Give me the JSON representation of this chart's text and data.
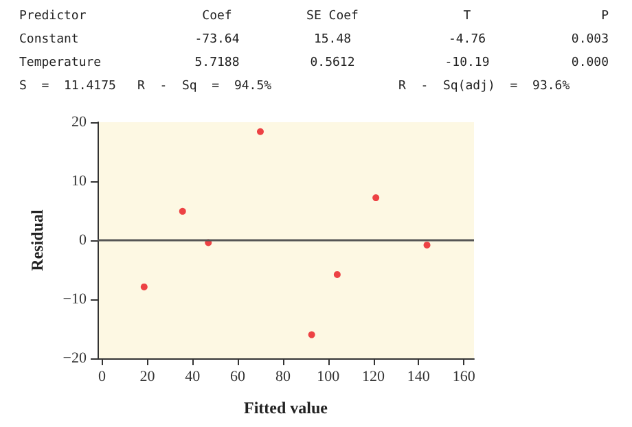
{
  "chart_data": {
    "type": "scatter",
    "xlabel": "Fitted value",
    "ylabel": "Residual",
    "x": [
      18.6,
      35.6,
      47.0,
      70.0,
      92.7,
      104.0,
      121.1,
      143.7
    ],
    "series": [
      {
        "color": "#e8141c",
        "values": [
          -7.9,
          4.9,
          -0.4,
          18.4,
          -16.0,
          -5.8,
          7.2,
          -0.8
        ]
      }
    ],
    "xlim": [
      -2,
      164.5
    ],
    "xticks": [
      0,
      20,
      40,
      60,
      80,
      100,
      120,
      140,
      160
    ],
    "ylim": [
      -20,
      20
    ],
    "yticks": [
      -20,
      -10,
      0,
      10,
      20
    ],
    "ref_lines": [
      {
        "axis": "y",
        "value": 0,
        "color": "#555555"
      }
    ],
    "marker": "circle",
    "grid": false,
    "annotations": [
      "Predictor",
      "Coef",
      "SE Coef",
      "T",
      "P",
      "Constant",
      "-73.64",
      "15.48",
      "-4.76",
      "0.003",
      "Temperature",
      "5.7188",
      "0.5612",
      "-10.19",
      "0.000",
      "S  =  11.4175",
      "R  -  Sq  =  94.5%",
      "R  -  Sq(adj)  =  93.6%"
    ]
  }
}
